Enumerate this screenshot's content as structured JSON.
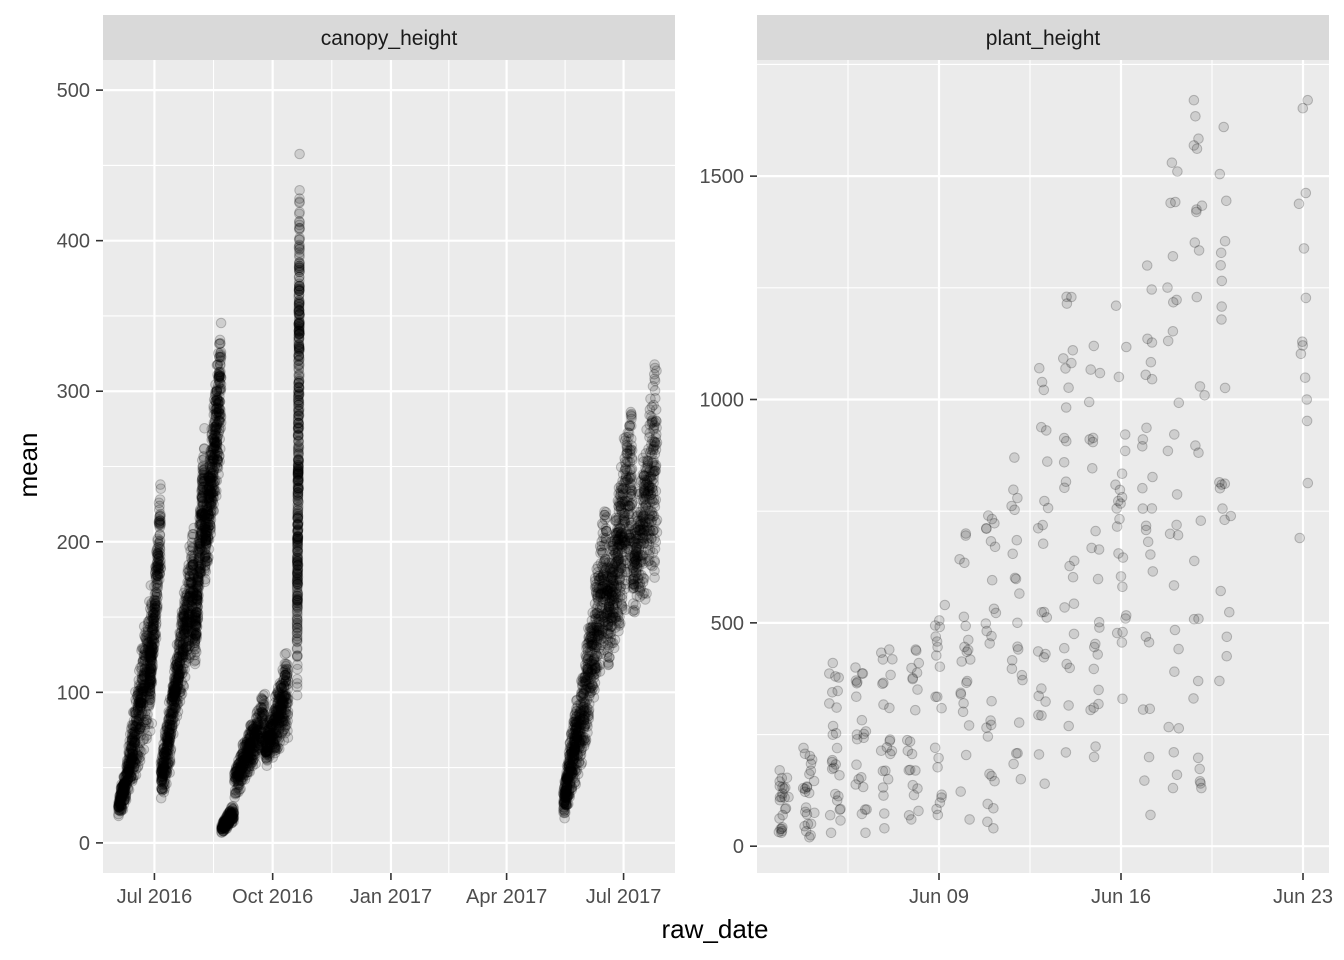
{
  "chart_data": {
    "type": "scatter",
    "xlabel": "raw_date",
    "ylabel": "mean",
    "point_color": "#000000",
    "point_alpha": 0.12,
    "panel_background": "#ebebeb",
    "strip_background": "#d9d9d9",
    "grid": true,
    "facets": [
      {
        "strip_label": "canopy_height",
        "xlim": [
          "2016-05-22",
          "2017-08-10"
        ],
        "ylim": [
          -20,
          520
        ],
        "x_ticks": [
          {
            "date": "2016-07-01",
            "label": "Jul 2016"
          },
          {
            "date": "2016-10-01",
            "label": "Oct 2016"
          },
          {
            "date": "2017-01-01",
            "label": "Jan 2017"
          },
          {
            "date": "2017-04-01",
            "label": "Apr 2017"
          },
          {
            "date": "2017-07-01",
            "label": "Jul 2017"
          }
        ],
        "y_ticks": [
          0,
          100,
          200,
          300,
          400,
          500
        ],
        "clusters": [
          {
            "x_start": "2016-06-03",
            "x_end": "2016-06-09",
            "y_start": [
              14,
              32
            ],
            "y_end": [
              22,
              60
            ],
            "n": 140
          },
          {
            "x_start": "2016-06-09",
            "x_end": "2016-06-29",
            "y_start": [
              22,
              60
            ],
            "y_end": [
              60,
              205
            ],
            "n": 420
          },
          {
            "x_start": "2016-06-27",
            "x_end": "2016-07-06",
            "y_start": [
              80,
              120
            ],
            "y_end": [
              160,
              270
            ],
            "n": 240
          },
          {
            "x_start": "2016-07-06",
            "x_end": "2016-07-14",
            "y_start": [
              24,
              60
            ],
            "y_end": [
              40,
              120
            ],
            "n": 200
          },
          {
            "x_start": "2016-07-14",
            "x_end": "2016-08-01",
            "y_start": [
              60,
              110
            ],
            "y_end": [
              120,
              240
            ],
            "n": 420
          },
          {
            "x_start": "2016-08-01",
            "x_end": "2016-08-09",
            "y_start": [
              100,
              160
            ],
            "y_end": [
              200,
              300
            ],
            "n": 250
          },
          {
            "x_start": "2016-08-09",
            "x_end": "2016-08-22",
            "y_start": [
              160,
              230
            ],
            "y_end": [
              240,
              380
            ],
            "n": 420
          },
          {
            "x_start": "2016-08-22",
            "x_end": "2016-09-01",
            "y_start": [
              5,
              14
            ],
            "y_end": [
              12,
              30
            ],
            "n": 180
          },
          {
            "x_start": "2016-09-01",
            "x_end": "2016-09-25",
            "y_start": [
              25,
              55
            ],
            "y_end": [
              55,
              115
            ],
            "n": 360
          },
          {
            "x_start": "2016-09-25",
            "x_end": "2016-10-13",
            "y_start": [
              45,
              75
            ],
            "y_end": [
              60,
              150
            ],
            "n": 340
          },
          {
            "x_start": "2016-10-20",
            "x_end": "2016-10-22",
            "y_start": [
              75,
              200
            ],
            "y_end": [
              300,
              496
            ],
            "n": 420
          },
          {
            "x_start": "2017-05-15",
            "x_end": "2017-05-26",
            "y_start": [
              10,
              40
            ],
            "y_end": [
              30,
              120
            ],
            "n": 280
          },
          {
            "x_start": "2017-05-26",
            "x_end": "2017-06-18",
            "y_start": [
              30,
              100
            ],
            "y_end": [
              120,
              260
            ],
            "n": 420
          },
          {
            "x_start": "2017-06-18",
            "x_end": "2017-07-08",
            "y_start": [
              100,
              200
            ],
            "y_end": [
              150,
              350
            ],
            "n": 420
          },
          {
            "x_start": "2017-07-08",
            "x_end": "2017-07-27",
            "y_start": [
              130,
              220
            ],
            "y_end": [
              150,
              370
            ],
            "n": 340
          }
        ]
      },
      {
        "strip_label": "plant_height",
        "xlim": [
          "2016-06-02",
          "2016-06-24"
        ],
        "ylim": [
          -60,
          1760
        ],
        "x_ticks": [
          {
            "date": "2016-06-09",
            "label": "Jun 09"
          },
          {
            "date": "2016-06-16",
            "label": "Jun 16"
          },
          {
            "date": "2016-06-23",
            "label": "Jun 23"
          }
        ],
        "y_ticks": [
          0,
          500,
          1000,
          1500
        ],
        "daily": [
          {
            "date": "2016-06-03",
            "low": 30,
            "high": 170,
            "n": 24
          },
          {
            "date": "2016-06-04",
            "low": 20,
            "high": 220,
            "n": 24
          },
          {
            "date": "2016-06-05",
            "low": 30,
            "high": 410,
            "n": 26
          },
          {
            "date": "2016-06-06",
            "low": 30,
            "high": 400,
            "n": 22
          },
          {
            "date": "2016-06-07",
            "low": 40,
            "high": 440,
            "n": 22
          },
          {
            "date": "2016-06-08",
            "low": 60,
            "high": 440,
            "n": 22
          },
          {
            "date": "2016-06-09",
            "low": 70,
            "high": 540,
            "n": 20
          },
          {
            "date": "2016-06-10",
            "low": 60,
            "high": 700,
            "n": 22
          },
          {
            "date": "2016-06-11",
            "low": 40,
            "high": 740,
            "n": 26
          },
          {
            "date": "2016-06-12",
            "low": 150,
            "high": 870,
            "n": 22
          },
          {
            "date": "2016-06-13",
            "low": 140,
            "high": 1070,
            "n": 24
          },
          {
            "date": "2016-06-14",
            "low": 210,
            "high": 1230,
            "n": 26
          },
          {
            "date": "2016-06-15",
            "low": 200,
            "high": 1120,
            "n": 24
          },
          {
            "date": "2016-06-16",
            "low": 330,
            "high": 1210,
            "n": 24
          },
          {
            "date": "2016-06-17",
            "low": 70,
            "high": 1300,
            "n": 26
          },
          {
            "date": "2016-06-18",
            "low": 130,
            "high": 1530,
            "n": 26
          },
          {
            "date": "2016-06-19",
            "low": 130,
            "high": 1670,
            "n": 26
          },
          {
            "date": "2016-06-20",
            "low": 370,
            "high": 1610,
            "n": 22
          },
          {
            "date": "2016-06-21",
            "low": 0,
            "high": 0,
            "n": 0
          },
          {
            "date": "2016-06-22",
            "low": 0,
            "high": 0,
            "n": 0
          },
          {
            "date": "2016-06-23",
            "low": 690,
            "high": 1670,
            "n": 14
          }
        ]
      }
    ]
  }
}
